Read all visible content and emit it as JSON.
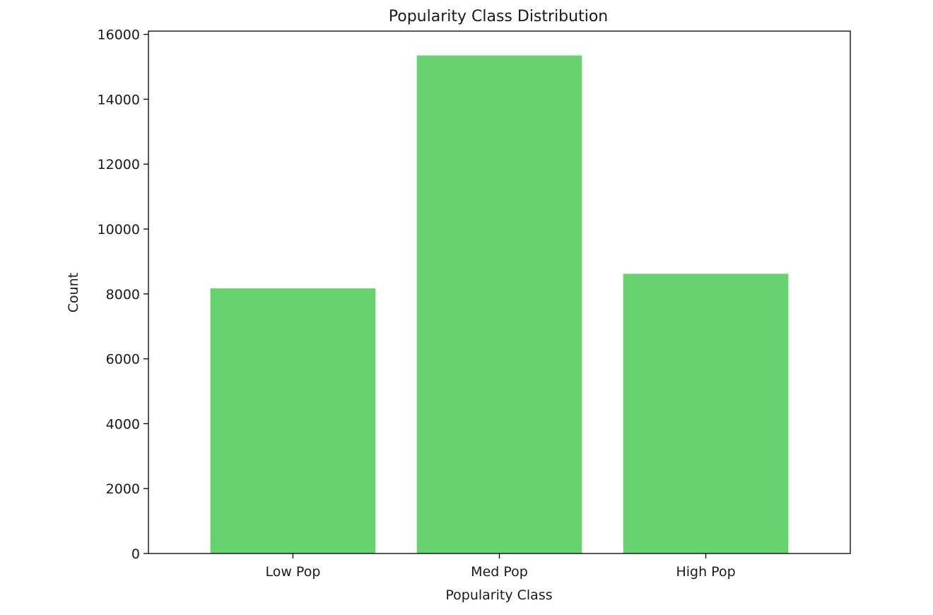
{
  "chart_data": {
    "type": "bar",
    "title": "Popularity Class Distribution",
    "xlabel": "Popularity Class",
    "ylabel": "Count",
    "categories": [
      "Low Pop",
      "Med Pop",
      "High Pop"
    ],
    "values": [
      8170,
      15350,
      8620
    ],
    "ylim": [
      0,
      16100
    ],
    "yticks": [
      0,
      2000,
      4000,
      6000,
      8000,
      10000,
      12000,
      14000,
      16000
    ],
    "bar_color": "#66d36e",
    "grid": false,
    "legend": "none"
  }
}
